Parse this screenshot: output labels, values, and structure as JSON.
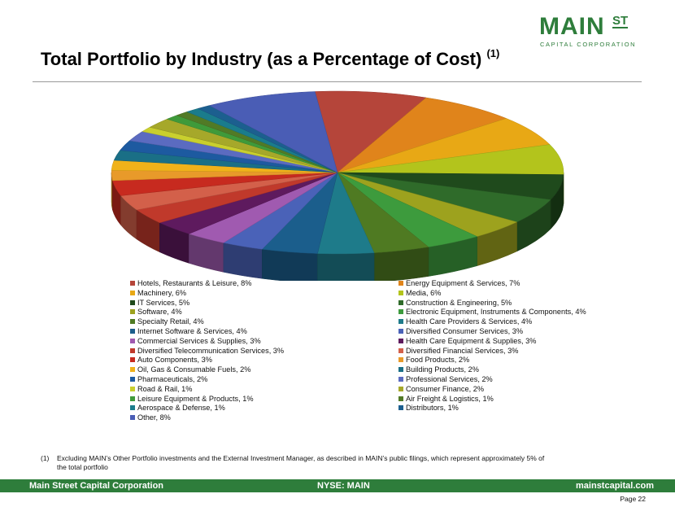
{
  "logo": {
    "main": "MAIN",
    "sup": "ST",
    "sub": "CAPITAL CORPORATION"
  },
  "title": "Total Portfolio by Industry (as a Percentage of Cost)",
  "title_ref": "(1)",
  "chart_data": {
    "type": "pie",
    "title": "",
    "slices": [
      {
        "label": "Hotels, Restaurants & Leisure, 8%",
        "name": "Hotels, Restaurants & Leisure",
        "value": 8,
        "color": "#b5453a"
      },
      {
        "label": "Energy Equipment & Services, 7%",
        "name": "Energy Equipment & Services",
        "value": 7,
        "color": "#e0841b"
      },
      {
        "label": "Machinery, 6%",
        "name": "Machinery",
        "value": 6,
        "color": "#e8a815"
      },
      {
        "label": "Media, 6%",
        "name": "Media",
        "value": 6,
        "color": "#b3c41c"
      },
      {
        "label": "IT Services, 5%",
        "name": "IT Services",
        "value": 5,
        "color": "#1f4a1c"
      },
      {
        "label": "Construction & Engineering, 5%",
        "name": "Construction & Engineering",
        "value": 5,
        "color": "#2f6b2a"
      },
      {
        "label": "Software, 4%",
        "name": "Software",
        "value": 4,
        "color": "#9da21e"
      },
      {
        "label": "Electronic Equipment, Instruments & Components, 4%",
        "name": "Electronic Equipment, Instruments & Components",
        "value": 4,
        "color": "#3d9b3d"
      },
      {
        "label": "Specialty Retail, 4%",
        "name": "Specialty Retail",
        "value": 4,
        "color": "#4f7a22"
      },
      {
        "label": "Health Care Providers & Services, 4%",
        "name": "Health Care Providers & Services",
        "value": 4,
        "color": "#1e7b8a"
      },
      {
        "label": "Internet Software & Services, 4%",
        "name": "Internet Software & Services",
        "value": 4,
        "color": "#1b5e8c"
      },
      {
        "label": "Diversified Consumer Services, 3%",
        "name": "Diversified Consumer Services",
        "value": 3,
        "color": "#4a62b8"
      },
      {
        "label": "Commercial Services & Supplies, 3%",
        "name": "Commercial Services & Supplies",
        "value": 3,
        "color": "#a05ab0"
      },
      {
        "label": "Health Care Equipment & Supplies, 3%",
        "name": "Health Care Equipment & Supplies",
        "value": 3,
        "color": "#5e1a5e"
      },
      {
        "label": "Diversified Telecommunication Services, 3%",
        "name": "Diversified Telecommunication Services",
        "value": 3,
        "color": "#c0392b"
      },
      {
        "label": "Diversified Financial Services, 3%",
        "name": "Diversified Financial Services",
        "value": 3,
        "color": "#d3604a"
      },
      {
        "label": "Auto Components, 3%",
        "name": "Auto Components",
        "value": 3,
        "color": "#c72a1f"
      },
      {
        "label": "Food Products, 2%",
        "name": "Food Products",
        "value": 2,
        "color": "#e89a2a"
      },
      {
        "label": "Oil, Gas & Consumable Fuels, 2%",
        "name": "Oil, Gas & Consumable Fuels",
        "value": 2,
        "color": "#f0b21a"
      },
      {
        "label": "Building Products, 2%",
        "name": "Building Products",
        "value": 2,
        "color": "#1a6f86"
      },
      {
        "label": "Pharmaceuticals, 2%",
        "name": "Pharmaceuticals",
        "value": 2,
        "color": "#1d5aa0"
      },
      {
        "label": "Professional Services, 2%",
        "name": "Professional Services",
        "value": 2,
        "color": "#5b6bc0"
      },
      {
        "label": "Road & Rail, 1%",
        "name": "Road & Rail",
        "value": 1,
        "color": "#c9cf2e"
      },
      {
        "label": "Consumer Finance, 2%",
        "name": "Consumer Finance",
        "value": 2,
        "color": "#a6a82a"
      },
      {
        "label": "Leisure Equipment & Products, 1%",
        "name": "Leisure Equipment & Products",
        "value": 1,
        "color": "#3f9a3a"
      },
      {
        "label": "Air Freight & Logistics, 1%",
        "name": "Air Freight & Logistics",
        "value": 1,
        "color": "#517a26"
      },
      {
        "label": "Aerospace & Defense, 1%",
        "name": "Aerospace & Defense",
        "value": 1,
        "color": "#1a7c8c"
      },
      {
        "label": "Distributors, 1%",
        "name": "Distributors",
        "value": 1,
        "color": "#1c5f8f"
      },
      {
        "label": "Other, 8%",
        "name": "Other",
        "value": 8,
        "color": "#4a5db5"
      }
    ],
    "legend_position": "bottom, two columns"
  },
  "footnote": {
    "num": "(1)",
    "text": "Excluding MAIN’s Other Portfolio investments and the External Investment Manager, as described in MAIN’s public filings, which represent approximately 5% of the total portfolio"
  },
  "footer": {
    "left": "Main Street Capital Corporation",
    "center": "NYSE: MAIN",
    "right": "mainstcapital.com"
  },
  "page": "Page 22",
  "colors": {
    "brand_green": "#2e7d3b"
  }
}
